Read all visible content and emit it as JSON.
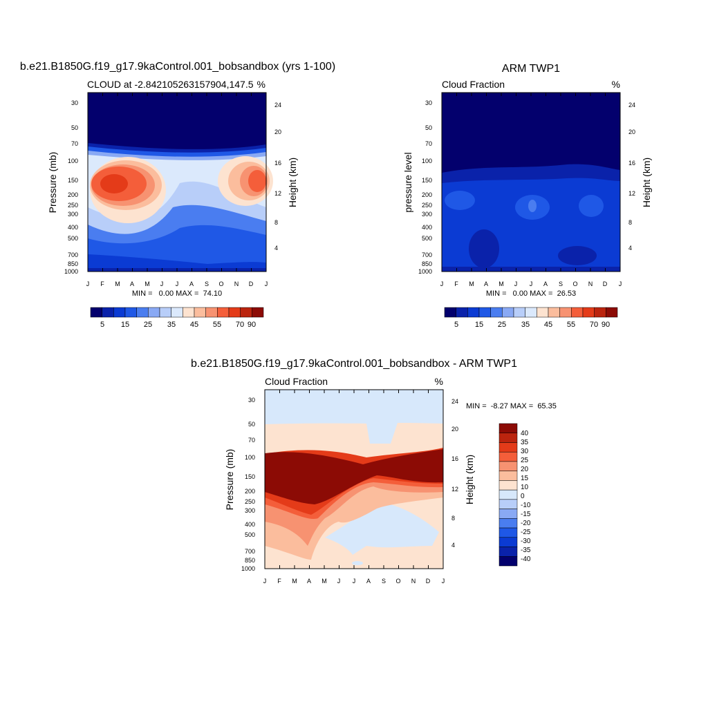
{
  "chart_data": [
    {
      "type": "heatmap",
      "title": "b.e21.B1850G.f19_g17.9kaControl.001_bobsandbox (yrs 1-100)",
      "subtitle_left": "CLOUD at -2.842105263157904,147.5",
      "subtitle_right": "%",
      "ylabel": "Pressure (mb)",
      "ylabel_right": "Height (km)",
      "x_ticklabels": [
        "J",
        "F",
        "M",
        "A",
        "M",
        "J",
        "J",
        "A",
        "S",
        "O",
        "N",
        "D",
        "J"
      ],
      "y_ticklabels": [
        "30",
        "50",
        "70",
        "100",
        "150",
        "200",
        "250",
        "300",
        "400",
        "500",
        "700",
        "850",
        "1000"
      ],
      "y_right_ticklabels": [
        "24",
        "20",
        "16",
        "12",
        "8",
        "4"
      ],
      "stats": "MIN =   0.00 MAX =  74.10",
      "min": 0.0,
      "max": 74.1,
      "colorbar_labels": [
        "5",
        "15",
        "25",
        "35",
        "45",
        "55",
        "70",
        "90"
      ]
    },
    {
      "type": "heatmap",
      "title": "ARM TWP1",
      "subtitle_left": "Cloud Fraction",
      "subtitle_right": "%",
      "ylabel": "pressure level",
      "ylabel_right": "Height (km)",
      "x_ticklabels": [
        "J",
        "F",
        "M",
        "A",
        "M",
        "J",
        "J",
        "A",
        "S",
        "O",
        "N",
        "D",
        "J"
      ],
      "y_ticklabels": [
        "30",
        "50",
        "70",
        "100",
        "150",
        "200",
        "250",
        "300",
        "400",
        "500",
        "700",
        "850",
        "1000"
      ],
      "y_right_ticklabels": [
        "24",
        "20",
        "16",
        "12",
        "8",
        "4"
      ],
      "stats": "MIN =   0.00 MAX =  26.53",
      "min": 0.0,
      "max": 26.53,
      "colorbar_labels": [
        "5",
        "15",
        "25",
        "35",
        "45",
        "55",
        "70",
        "90"
      ]
    },
    {
      "type": "heatmap",
      "title": "b.e21.B1850G.f19_g17.9kaControl.001_bobsandbox - ARM TWP1",
      "subtitle_left": "Cloud Fraction",
      "subtitle_right": "%",
      "ylabel": "Pressure (mb)",
      "ylabel_right": "Height (km)",
      "x_ticklabels": [
        "J",
        "F",
        "M",
        "A",
        "M",
        "J",
        "J",
        "A",
        "S",
        "O",
        "N",
        "D",
        "J"
      ],
      "y_ticklabels": [
        "30",
        "50",
        "70",
        "100",
        "150",
        "200",
        "250",
        "300",
        "400",
        "500",
        "700",
        "850",
        "1000"
      ],
      "y_right_ticklabels": [
        "24",
        "20",
        "16",
        "12",
        "8",
        "4"
      ],
      "stats": "MIN =  -8.27 MAX =  65.35",
      "min": -8.27,
      "max": 65.35,
      "colorbar_labels": [
        "40",
        "35",
        "30",
        "25",
        "20",
        "15",
        "10",
        "0",
        "-10",
        "-15",
        "-20",
        "-25",
        "-30",
        "-35",
        "-40"
      ]
    }
  ],
  "colors": {
    "pos_scale": [
      "#03006d",
      "#0a22aa",
      "#0b3bd3",
      "#1f58e6",
      "#4a7df0",
      "#89a9f4",
      "#b8cef9",
      "#dbe9fc",
      "#fde3d0",
      "#fbbd9d",
      "#f79271",
      "#f45e3a",
      "#e43b19",
      "#bb240e",
      "#8c0b05"
    ],
    "diff_scale": [
      "#8c0b05",
      "#bb240e",
      "#e43b19",
      "#f45e3a",
      "#f79271",
      "#fbbd9d",
      "#fde3d0",
      "#d7e8fb",
      "#b8cef9",
      "#89a9f4",
      "#4a7df0",
      "#1f58e6",
      "#0b3bd3",
      "#0a22aa",
      "#03006d"
    ]
  }
}
